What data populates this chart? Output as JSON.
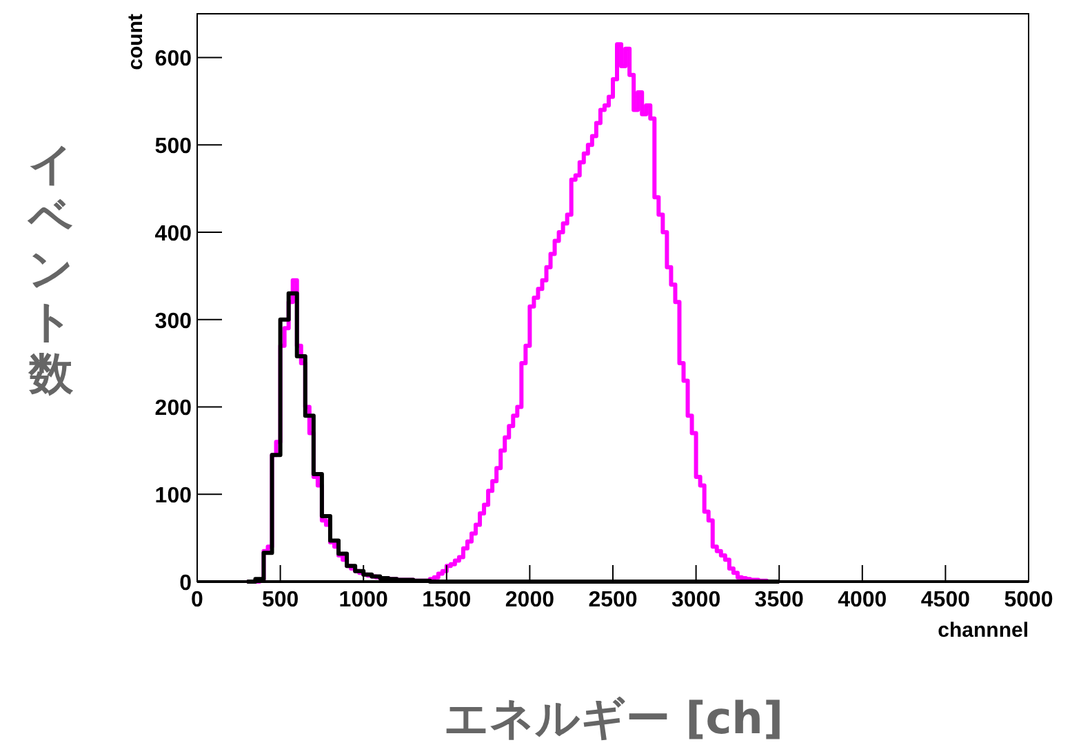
{
  "chart_data": {
    "type": "histogram",
    "xlabel": "channnel",
    "ylabel": "count",
    "annotations": [
      "イベント数",
      "エネルギー [ch]"
    ],
    "xlim": [
      0,
      5000
    ],
    "xticks": [
      0,
      500,
      1000,
      1500,
      2000,
      2500,
      3000,
      3500,
      4000,
      4500,
      5000
    ],
    "ylim": [
      0,
      650
    ],
    "yticks": [
      0,
      100,
      200,
      300,
      400,
      500,
      600
    ],
    "bins": [
      300,
      325,
      350,
      375,
      400,
      425,
      450,
      475,
      500,
      525,
      550,
      575,
      600,
      625,
      650,
      675,
      700,
      725,
      750,
      775,
      800,
      825,
      850,
      875,
      900,
      925,
      950,
      975,
      1000,
      1025,
      1050,
      1075,
      1100,
      1125,
      1150,
      1175,
      1200,
      1225,
      1250,
      1275,
      1300,
      1325,
      1350,
      1375,
      1400,
      1425,
      1450,
      1475,
      1500,
      1525,
      1550,
      1575,
      1600,
      1625,
      1650,
      1675,
      1700,
      1725,
      1750,
      1775,
      1800,
      1825,
      1850,
      1875,
      1900,
      1925,
      1950,
      1975,
      2000,
      2025,
      2050,
      2075,
      2100,
      2125,
      2150,
      2175,
      2200,
      2225,
      2250,
      2275,
      2300,
      2325,
      2350,
      2375,
      2400,
      2425,
      2450,
      2475,
      2500,
      2525,
      2550,
      2575,
      2600,
      2625,
      2650,
      2675,
      2700,
      2725,
      2750,
      2775,
      2800,
      2825,
      2850,
      2875,
      2900,
      2925,
      2950,
      2975,
      3000,
      3025,
      3050,
      3075,
      3100,
      3125,
      3150,
      3175,
      3200,
      3225,
      3250,
      3275,
      3300,
      3325,
      3350,
      3375,
      3400,
      3425,
      3450,
      3475,
      3500
    ],
    "series": [
      {
        "color": "#ff00ff",
        "values": [
          0,
          0,
          0,
          2,
          35,
          40,
          145,
          160,
          270,
          290,
          320,
          345,
          270,
          250,
          200,
          170,
          120,
          110,
          70,
          65,
          45,
          40,
          30,
          25,
          18,
          15,
          12,
          10,
          8,
          7,
          6,
          5,
          4,
          4,
          3,
          3,
          2,
          2,
          2,
          2,
          1,
          1,
          1,
          1,
          3,
          5,
          9,
          12,
          18,
          20,
          24,
          28,
          38,
          46,
          55,
          65,
          78,
          88,
          104,
          115,
          130,
          150,
          165,
          178,
          190,
          200,
          250,
          270,
          315,
          325,
          335,
          345,
          360,
          375,
          390,
          400,
          410,
          420,
          460,
          465,
          480,
          490,
          500,
          510,
          525,
          540,
          545,
          555,
          575,
          615,
          590,
          610,
          580,
          540,
          560,
          535,
          545,
          530,
          440,
          420,
          400,
          360,
          340,
          320,
          250,
          230,
          190,
          170,
          120,
          110,
          80,
          70,
          40,
          35,
          30,
          25,
          15,
          10,
          5,
          4,
          3,
          2,
          2,
          1,
          1,
          0,
          0,
          0
        ]
      },
      {
        "color": "#000000",
        "values": [
          0,
          0,
          3,
          3,
          33,
          33,
          145,
          145,
          300,
          300,
          330,
          330,
          258,
          258,
          190,
          190,
          123,
          123,
          75,
          75,
          47,
          47,
          32,
          32,
          18,
          18,
          12,
          12,
          8,
          8,
          6,
          6,
          4,
          4,
          3,
          3,
          2,
          2,
          2,
          2,
          1,
          1,
          1,
          1,
          0,
          0,
          0,
          0,
          0,
          0,
          0,
          0,
          0,
          0,
          0,
          0,
          0,
          0,
          0,
          0,
          0,
          0,
          0,
          0,
          0,
          0,
          0,
          0,
          0,
          0,
          0,
          0,
          0,
          0,
          0,
          0,
          0,
          0,
          0,
          0,
          0,
          0,
          0,
          0,
          0,
          0,
          0,
          0,
          0,
          0,
          0,
          0,
          0,
          0,
          0,
          0,
          0,
          0,
          0,
          0,
          0,
          0,
          0,
          0,
          0,
          0,
          0,
          0,
          0,
          0,
          0,
          0,
          0,
          0,
          0,
          0,
          0,
          0,
          0,
          0,
          0,
          0,
          0,
          0,
          0,
          0,
          0,
          0
        ]
      }
    ]
  }
}
